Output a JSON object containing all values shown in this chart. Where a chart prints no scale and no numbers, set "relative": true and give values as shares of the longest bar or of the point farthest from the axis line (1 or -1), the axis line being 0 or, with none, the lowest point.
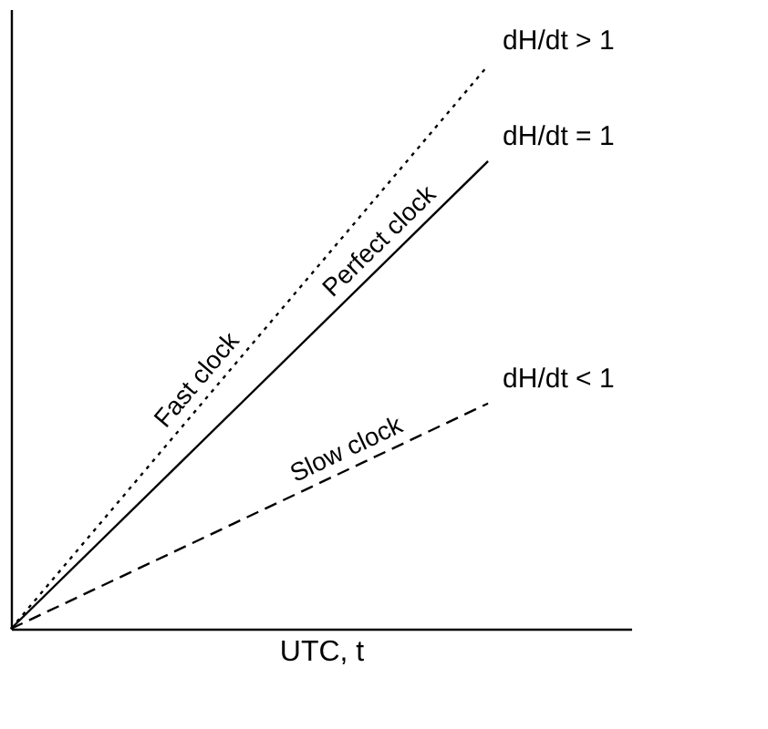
{
  "chart_data": {
    "type": "line",
    "relative": true,
    "xlabel": "UTC, t",
    "categories": [
      null,
      null
    ],
    "tick_labels": false,
    "grid": false,
    "series": [
      {
        "name": "Fast clock",
        "color": "#000000",
        "line_style": "dotted",
        "values": [
          0,
          1
        ]
      },
      {
        "name": "Perfect clock",
        "color": "#000000",
        "line_style": "solid",
        "values": [
          0,
          0.83
        ]
      },
      {
        "name": "Slow clock",
        "color": "#000000",
        "line_style": "dashed",
        "values": [
          0,
          0.4
        ]
      }
    ],
    "annotations": [
      "dH/dt > 1",
      "dH/dt = 1",
      "dH/dt < 1"
    ]
  }
}
